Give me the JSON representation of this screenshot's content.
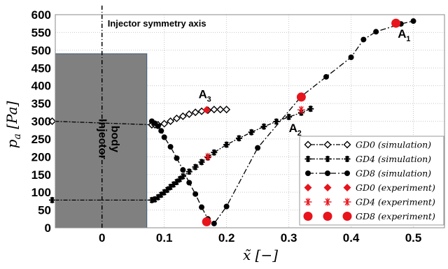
{
  "chart_data": {
    "type": "line",
    "title": "",
    "xlabel": "x̃ [−]",
    "ylabel_var": "p",
    "ylabel_sub": "a",
    "ylabel_unit": "[Pa]",
    "xlim": [
      -0.075,
      0.55
    ],
    "ylim": [
      0,
      600
    ],
    "xticks": [
      0,
      0.1,
      0.2,
      0.3,
      0.4,
      0.5
    ],
    "xtick_labels": [
      "0",
      "0.1",
      "0.2",
      "0.3",
      "0.4",
      "0.5"
    ],
    "yticks": [
      0,
      50,
      100,
      150,
      200,
      250,
      300,
      350,
      400,
      450,
      500,
      550,
      600
    ],
    "ytick_labels": [
      "0",
      "50",
      "100",
      "150",
      "200",
      "250",
      "300",
      "350",
      "400",
      "450",
      "500",
      "550",
      "600"
    ],
    "grid": true,
    "legend_position": "bottom-right",
    "annotations": {
      "symmetry_axis": "Injector symmetry axis",
      "body_line1": "Injector",
      "body_line2": "body",
      "A1": "A",
      "A1_sub": "1",
      "A2": "A",
      "A2_sub": "2",
      "A3": "A",
      "A3_sub": "3"
    },
    "injector_body": {
      "x_range": [
        -0.075,
        0.072
      ],
      "y_range": [
        0,
        490
      ]
    },
    "series": [
      {
        "name": "GD0 (simulation)",
        "marker": "open-diamond",
        "style": "dotted-dash",
        "color": "#000000",
        "x": [
          -0.08,
          0.08,
          0.085,
          0.09,
          0.1,
          0.11,
          0.12,
          0.13,
          0.14,
          0.15,
          0.16,
          0.17,
          0.18,
          0.19,
          0.2
        ],
        "y": [
          300,
          290,
          290,
          290,
          293,
          300,
          308,
          314,
          320,
          325,
          328,
          331,
          333,
          333,
          333
        ]
      },
      {
        "name": "GD4 (simulation)",
        "marker": "asterisk",
        "style": "dotted-dash",
        "color": "#000000",
        "x": [
          -0.08,
          0.08,
          0.085,
          0.09,
          0.095,
          0.1,
          0.105,
          0.11,
          0.115,
          0.12,
          0.125,
          0.13,
          0.14,
          0.15,
          0.16,
          0.17,
          0.18,
          0.2,
          0.22,
          0.24,
          0.26,
          0.28,
          0.3,
          0.32,
          0.335
        ],
        "y": [
          78,
          78,
          80,
          86,
          93,
          100,
          107,
          115,
          122,
          129,
          137,
          145,
          158,
          171,
          185,
          198,
          212,
          234,
          252,
          269,
          285,
          299,
          312,
          324,
          335
        ]
      },
      {
        "name": "GD8 (simulation)",
        "marker": "filled-circle",
        "style": "dash-dot",
        "color": "#000000",
        "x": [
          0.08,
          0.085,
          0.09,
          0.095,
          0.1,
          0.11,
          0.12,
          0.13,
          0.14,
          0.15,
          0.16,
          0.17,
          0.18,
          0.2,
          0.25,
          0.32,
          0.36,
          0.4,
          0.42,
          0.44,
          0.48,
          0.5
        ],
        "y": [
          300,
          294,
          286,
          273,
          255,
          228,
          196,
          163,
          127,
          95,
          58,
          25,
          12,
          60,
          225,
          370,
          425,
          480,
          530,
          552,
          574,
          582
        ]
      },
      {
        "name": "GD0 (experiment)",
        "marker": "red-diamond",
        "style": "none",
        "color": "#e8141c",
        "x": [
          0.168
        ],
        "y": [
          332
        ]
      },
      {
        "name": "GD4 (experiment)",
        "marker": "red-asterisk",
        "style": "none",
        "color": "#e8141c",
        "x": [
          0.17,
          0.32
        ],
        "y": [
          200,
          332
        ]
      },
      {
        "name": "GD8 (experiment)",
        "marker": "red-circle",
        "style": "none",
        "color": "#e8141c",
        "x": [
          0.168,
          0.32,
          0.472
        ],
        "y": [
          17,
          368,
          576
        ]
      }
    ]
  }
}
